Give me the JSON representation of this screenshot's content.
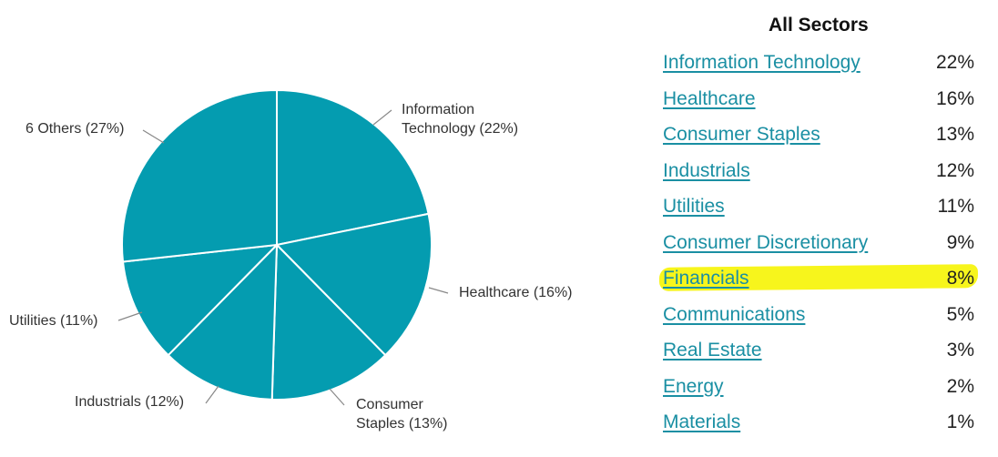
{
  "chart_data": {
    "type": "pie",
    "colors": {
      "slice": "#049cb0",
      "separator": "#ffffff",
      "leader": "#888888"
    },
    "slices": [
      {
        "label_lines": [
          "Information",
          "Technology (22%)"
        ],
        "value": 22
      },
      {
        "label_lines": [
          "Healthcare (16%)"
        ],
        "value": 16
      },
      {
        "label_lines": [
          "Consumer",
          "Staples (13%)"
        ],
        "value": 13
      },
      {
        "label_lines": [
          "Industrials (12%)"
        ],
        "value": 12
      },
      {
        "label_lines": [
          "Utilities (11%)"
        ],
        "value": 11
      },
      {
        "label_lines": [
          "6 Others (27%)"
        ],
        "value": 27
      }
    ]
  },
  "sectors": {
    "title": "All Sectors",
    "highlight_color": "#f7f51c",
    "highlighted_item": "Financials",
    "items": [
      {
        "name": "Information Technology",
        "pct": "22%"
      },
      {
        "name": "Healthcare",
        "pct": "16%"
      },
      {
        "name": "Consumer Staples",
        "pct": "13%"
      },
      {
        "name": "Industrials",
        "pct": "12%"
      },
      {
        "name": "Utilities",
        "pct": "11%"
      },
      {
        "name": "Consumer Discretionary",
        "pct": "9%"
      },
      {
        "name": "Financials",
        "pct": "8%"
      },
      {
        "name": "Communications",
        "pct": "5%"
      },
      {
        "name": "Real Estate",
        "pct": "3%"
      },
      {
        "name": "Energy",
        "pct": "2%"
      },
      {
        "name": "Materials",
        "pct": "1%"
      }
    ]
  }
}
